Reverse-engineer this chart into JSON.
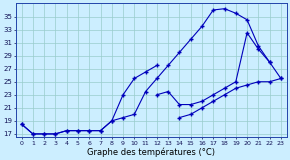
{
  "xlabel": "Graphe des températures (°C)",
  "bg_color": "#cceeff",
  "line_color": "#0000bb",
  "grid_color": "#99cccc",
  "hours": [
    0,
    1,
    2,
    3,
    4,
    5,
    6,
    7,
    8,
    9,
    10,
    11,
    12,
    13,
    14,
    15,
    16,
    17,
    18,
    19,
    20,
    21,
    22,
    23
  ],
  "line1": [
    18.5,
    17.0,
    17.0,
    17.0,
    17.5,
    17.5,
    17.5,
    17.5,
    19.0,
    19.5,
    20.0,
    23.5,
    25.5,
    27.5,
    29.5,
    31.5,
    33.5,
    36.0,
    36.2,
    35.5,
    34.5,
    30.5,
    28.0,
    null
  ],
  "line2": [
    18.5,
    17.0,
    17.0,
    17.0,
    17.5,
    17.5,
    17.5,
    17.5,
    19.0,
    23.0,
    25.5,
    26.5,
    27.5,
    null,
    null,
    null,
    null,
    null,
    null,
    null,
    null,
    null,
    null,
    null
  ],
  "line3": [
    null,
    null,
    null,
    null,
    null,
    null,
    null,
    null,
    null,
    null,
    null,
    null,
    23.0,
    23.5,
    21.5,
    21.5,
    22.0,
    23.0,
    24.0,
    25.0,
    32.5,
    30.0,
    28.0,
    25.5
  ],
  "line4": [
    null,
    null,
    null,
    null,
    null,
    null,
    null,
    null,
    null,
    null,
    null,
    null,
    null,
    null,
    19.5,
    20.0,
    21.0,
    22.0,
    23.0,
    24.0,
    24.5,
    25.0,
    25.0,
    25.5
  ],
  "ylim": [
    16.5,
    37.0
  ],
  "yticks": [
    17,
    19,
    21,
    23,
    25,
    27,
    29,
    31,
    33,
    35
  ],
  "xlim": [
    -0.5,
    23.5
  ]
}
